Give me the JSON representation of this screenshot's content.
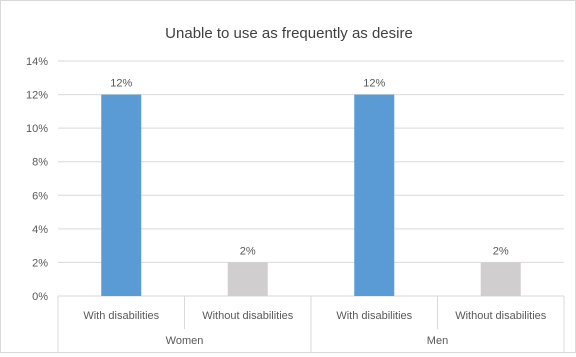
{
  "chart_data": {
    "type": "bar",
    "title": "Unable to use as frequently as desire",
    "xlabel": "",
    "ylabel": "",
    "ylim": [
      0,
      14
    ],
    "yticks": [
      0,
      2,
      4,
      6,
      8,
      10,
      12,
      14
    ],
    "ytick_suffix": "%",
    "grid": true,
    "legend": "none",
    "groups": [
      {
        "label": "Women",
        "categories": [
          "With disabilities",
          "Without disabilities"
        ],
        "values": [
          12,
          2
        ],
        "data_labels": [
          "12%",
          "2%"
        ]
      },
      {
        "label": "Men",
        "categories": [
          "With disabilities",
          "Without disabilities"
        ],
        "values": [
          12,
          2
        ],
        "data_labels": [
          "12%",
          "2%"
        ]
      }
    ],
    "colors": {
      "with_disabilities": "#5b9bd5",
      "without_disabilities": "#d0cece",
      "gridline": "#d9d9d9",
      "axis_text": "#595959"
    }
  }
}
